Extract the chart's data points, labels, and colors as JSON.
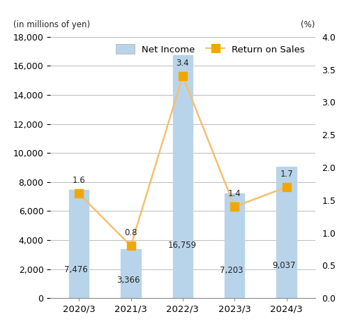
{
  "categories": [
    "2020/3",
    "2021/3",
    "2022/3",
    "2023/3",
    "2024/3"
  ],
  "net_income": [
    7476,
    3366,
    16759,
    7203,
    9037
  ],
  "return_on_sales": [
    1.6,
    0.8,
    3.4,
    1.4,
    1.7
  ],
  "bar_color": "#b8d4ea",
  "bar_edgecolor": "#b8d4ea",
  "line_color": "#f5c070",
  "marker_color": "#f0a800",
  "marker_style": "s",
  "left_label": "(in millions of yen)",
  "right_label": "(%)",
  "left_ylim": [
    0,
    18000
  ],
  "right_ylim": [
    0.0,
    4.0
  ],
  "left_yticks": [
    0,
    2000,
    4000,
    6000,
    8000,
    10000,
    12000,
    14000,
    16000,
    18000
  ],
  "right_yticks": [
    0.0,
    0.5,
    1.0,
    1.5,
    2.0,
    2.5,
    3.0,
    3.5,
    4.0
  ],
  "legend_net_income": "Net Income",
  "legend_ros": "Return on Sales",
  "bar_width": 0.38,
  "background_color": "#ffffff",
  "grid_color": "#bbbbbb",
  "net_income_labels": [
    "7,476",
    "3,366",
    "16,759",
    "7,203",
    "9,037"
  ],
  "ros_labels": [
    "1.6",
    "0.8",
    "3.4",
    "1.4",
    "1.7"
  ],
  "label_offset_x": [
    -0.28,
    -0.28,
    -0.28,
    -0.28,
    -0.28
  ]
}
